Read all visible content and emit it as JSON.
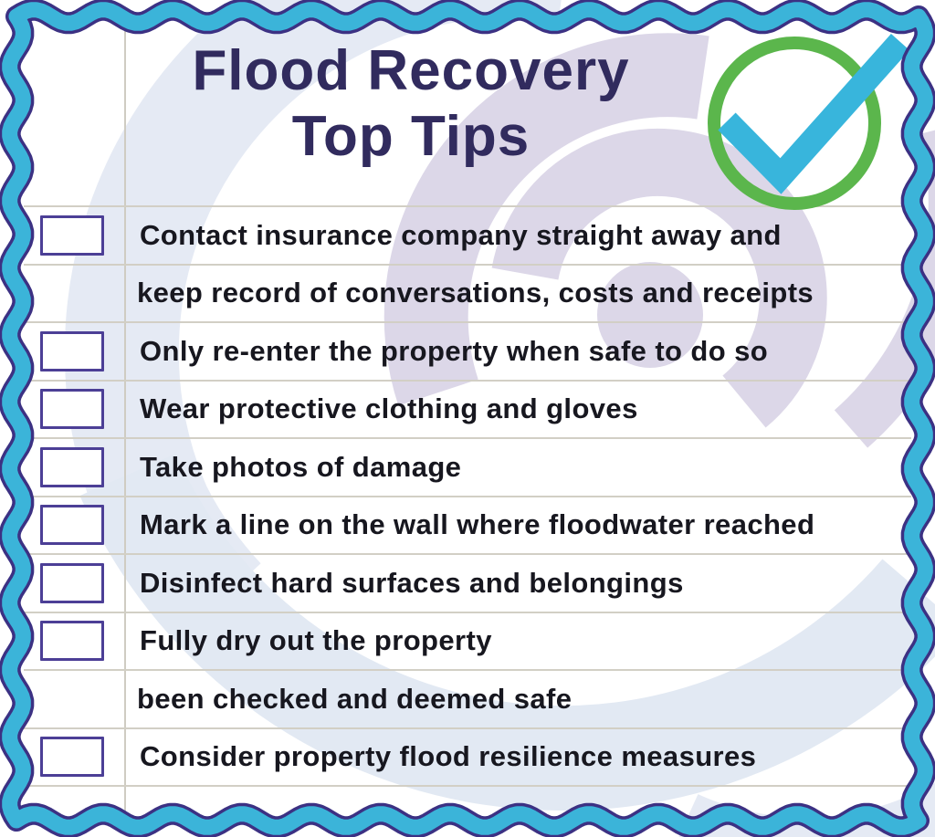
{
  "title": {
    "line1": "Flood Recovery",
    "line2": "Top Tips"
  },
  "badge": {
    "icon": "check-circle",
    "circle_color": "#5bb64c",
    "check_color": "#38b5dc"
  },
  "items": [
    {
      "has_checkbox": true,
      "checked": false,
      "text": "Contact insurance company straight away and"
    },
    {
      "has_checkbox": false,
      "checked": false,
      "text": "keep record of conversations, costs and receipts"
    },
    {
      "has_checkbox": true,
      "checked": false,
      "text": "Only re-enter the property when safe to do so"
    },
    {
      "has_checkbox": true,
      "checked": false,
      "text": "Wear protective clothing and gloves"
    },
    {
      "has_checkbox": true,
      "checked": false,
      "text": "Take photos of damage"
    },
    {
      "has_checkbox": true,
      "checked": false,
      "text": "Mark a line on the wall where floodwater reached"
    },
    {
      "has_checkbox": true,
      "checked": false,
      "text": "Disinfect hard surfaces and belongings"
    },
    {
      "has_checkbox": true,
      "checked": false,
      "text": "Fully dry out the property"
    },
    {
      "has_checkbox": false,
      "checked": false,
      "text": "been checked and deemed safe"
    },
    {
      "has_checkbox": true,
      "checked": false,
      "text": "Consider property flood resilience measures"
    },
    {
      "has_checkbox": false,
      "checked": false,
      "text": ""
    }
  ],
  "colors": {
    "title_text": "#312b5e",
    "item_text": "#17171f",
    "checkbox_border": "#4c3f96",
    "rule_lines": "#d2cfc5",
    "border_ribbon": "#3bb4d9",
    "border_outline": "#3c3183",
    "watermark_blue": "#e5eaf4",
    "watermark_lavender": "#dcd7e8"
  }
}
